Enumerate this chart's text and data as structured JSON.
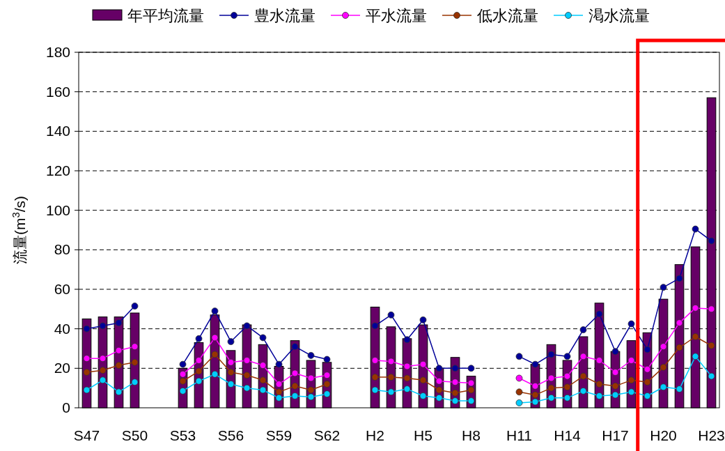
{
  "chart_data": {
    "type": "bar",
    "ylabel": "流量(m$^{3}$/s)",
    "categories": [
      "S47",
      null,
      null,
      "S50",
      null,
      null,
      "S53",
      null,
      null,
      "S56",
      null,
      null,
      "S59",
      null,
      null,
      "S62",
      null,
      null,
      "H2",
      null,
      null,
      "H5",
      null,
      null,
      "H8",
      null,
      null,
      "H11",
      null,
      null,
      "H14",
      null,
      null,
      "H17",
      null,
      null,
      "H20",
      null,
      null,
      "H23"
    ],
    "series": [
      {
        "name": "年平均流量",
        "color": "#660066",
        "values": [
          45,
          46,
          46,
          48,
          null,
          null,
          20,
          33,
          47,
          29,
          42,
          32,
          21,
          34,
          24,
          23,
          null,
          null,
          51,
          41,
          35,
          42,
          20,
          25.5,
          16,
          null,
          null,
          null,
          22,
          32,
          24,
          36,
          53,
          28.5,
          34,
          38,
          55,
          72.5,
          81.5,
          157
        ]
      },
      {
        "name": "豊水流量",
        "type": "line",
        "color": "#000099",
        "values": [
          40,
          41.5,
          43,
          51.5,
          null,
          null,
          22,
          35,
          49,
          33.5,
          41.5,
          35.5,
          22,
          31,
          26.5,
          24.5,
          null,
          null,
          41.5,
          47,
          34.5,
          44.5,
          20,
          20,
          20,
          null,
          null,
          26,
          22,
          27,
          26,
          39.5,
          47.5,
          28.5,
          42.5,
          29.5,
          61,
          65.5,
          90.5,
          84.5
        ]
      },
      {
        "name": "平水流量",
        "type": "line",
        "color": "#ff00ff",
        "values": [
          25,
          25,
          29,
          31,
          null,
          null,
          17,
          24,
          35.5,
          23,
          24,
          21.5,
          12,
          17.5,
          15,
          16.5,
          null,
          null,
          24,
          23.5,
          21,
          22,
          13.5,
          13,
          12.5,
          null,
          null,
          15,
          11,
          15,
          16,
          26,
          24,
          18,
          24,
          19.5,
          31,
          43,
          50.5,
          50
        ]
      },
      {
        "name": "低水流量",
        "type": "line",
        "color": "#993300",
        "values": [
          18,
          19,
          21.5,
          23,
          null,
          null,
          13.5,
          18.5,
          27,
          18,
          16.5,
          14,
          8,
          11,
          9,
          12,
          null,
          null,
          15.5,
          15.5,
          15,
          14,
          9,
          7.5,
          9,
          null,
          null,
          8,
          6.5,
          10,
          10.5,
          16,
          12,
          11,
          14,
          13,
          20.5,
          30.5,
          36,
          31.5
        ]
      },
      {
        "name": "渇水流量",
        "type": "line",
        "color": "#00ccff",
        "values": [
          9,
          14,
          8,
          13,
          null,
          null,
          8.5,
          13.5,
          17,
          12,
          10,
          9,
          5,
          6,
          5.5,
          7,
          null,
          null,
          9,
          8,
          9.5,
          6,
          5,
          3.5,
          3.5,
          null,
          null,
          2.5,
          3,
          5,
          5,
          8.5,
          6,
          6.5,
          8,
          6,
          10.5,
          9.5,
          26,
          16
        ]
      }
    ],
    "ylim": [
      0,
      180
    ],
    "yticks": [
      0,
      20,
      40,
      60,
      80,
      100,
      120,
      140,
      160,
      180
    ],
    "grid": "y",
    "legend": "top",
    "marker": "circle"
  }
}
